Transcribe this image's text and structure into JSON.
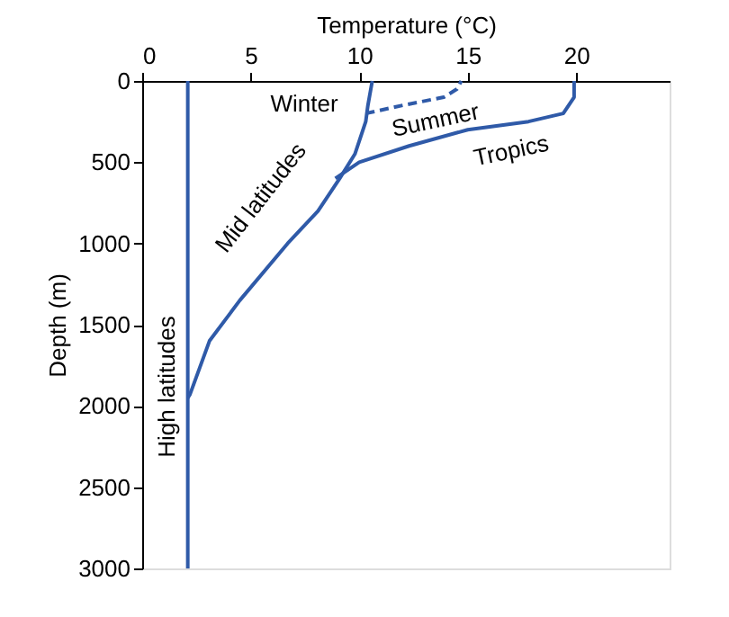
{
  "chart_data": {
    "type": "line",
    "xlabel": "Temperature (°C)",
    "ylabel": "Depth (m)",
    "xlim": [
      0,
      24.3
    ],
    "xticks": [
      0,
      5,
      10,
      15,
      20
    ],
    "ylim": [
      3000,
      0
    ],
    "yticks": [
      0,
      500,
      1000,
      1500,
      2000,
      2500,
      3000
    ],
    "grid": false,
    "marker": "none",
    "series": [
      {
        "color": "#2f5aa8",
        "line_style": "solid",
        "x": [
          2.1,
          2.1
        ],
        "values": [
          3000,
          0
        ]
      },
      {
        "color": "#2f5aa8",
        "line_style": "solid",
        "x": [
          2.1,
          2.2,
          3.1,
          4.5,
          6.7,
          8.1,
          9.1,
          9.8,
          10.3,
          10.4,
          10.6
        ],
        "values": [
          1950,
          1930,
          1600,
          1350,
          1000,
          800,
          600,
          450,
          250,
          150,
          0
        ]
      },
      {
        "color": "#2f5aa8",
        "line_style": "dashed",
        "x": [
          10.3,
          12.0,
          13.9,
          14.5,
          14.7
        ],
        "values": [
          200,
          150,
          100,
          50,
          0
        ]
      },
      {
        "color": "#2f5aa8",
        "line_style": "solid",
        "x": [
          8.9,
          10.0,
          12.3,
          15.0,
          17.8,
          19.4,
          19.9,
          19.9
        ],
        "values": [
          600,
          500,
          400,
          300,
          250,
          200,
          100,
          0
        ]
      }
    ],
    "annotations": [
      "Winter",
      "Summer",
      "Tropics",
      "Mid latitudes",
      "High latitudes"
    ]
  }
}
